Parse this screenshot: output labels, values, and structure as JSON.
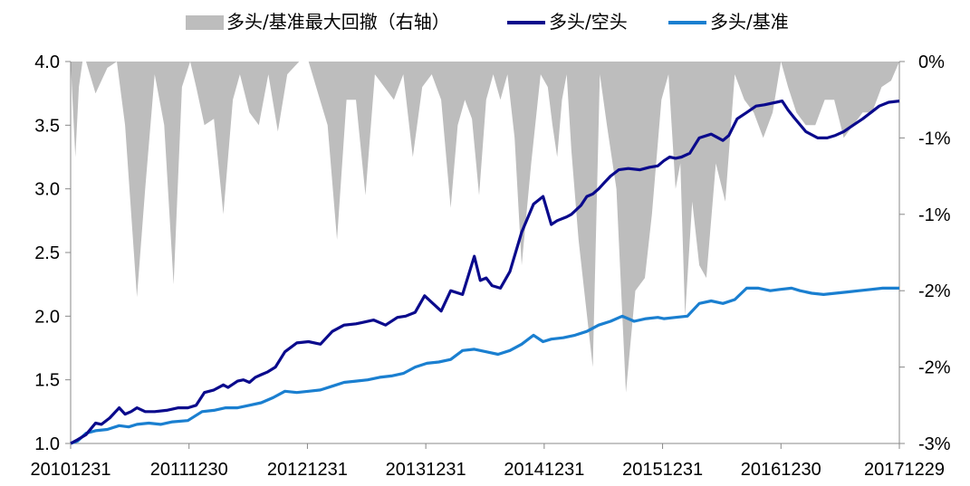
{
  "chart_data": {
    "type": "line",
    "title": "",
    "xlabel": "",
    "ylabel": "",
    "ylim": [
      1.0,
      4.0
    ],
    "y2lim": [
      -3,
      0
    ],
    "left_ticks": [
      "1.0",
      "1.5",
      "2.0",
      "2.5",
      "3.0",
      "3.5",
      "4.0"
    ],
    "right_ticks": [
      "0%",
      "-1%",
      "-1%",
      "-2%",
      "-2%",
      "-3%"
    ],
    "x_ticks": [
      "20101231",
      "20111230",
      "20121231",
      "20131231",
      "20141231",
      "20151231",
      "20161230",
      "20171229"
    ],
    "x_range": [
      2010.99,
      2017.99
    ],
    "grid": false,
    "legend_position": "top",
    "series": [
      {
        "name": "多头/空头",
        "color": "#0a0a8c",
        "axis": "left",
        "x": [
          2010.99,
          2011.05,
          2011.12,
          2011.2,
          2011.25,
          2011.32,
          2011.4,
          2011.45,
          2011.5,
          2011.55,
          2011.62,
          2011.7,
          2011.8,
          2011.9,
          2011.98,
          2012.05,
          2012.12,
          2012.2,
          2012.28,
          2012.32,
          2012.4,
          2012.45,
          2012.5,
          2012.55,
          2012.6,
          2012.65,
          2012.72,
          2012.8,
          2012.9,
          2013.0,
          2013.1,
          2013.2,
          2013.3,
          2013.4,
          2013.45,
          2013.55,
          2013.65,
          2013.75,
          2013.82,
          2013.9,
          2013.98,
          2014.05,
          2014.12,
          2014.2,
          2014.3,
          2014.4,
          2014.45,
          2014.5,
          2014.55,
          2014.62,
          2014.7,
          2014.8,
          2014.9,
          2014.98,
          2015.05,
          2015.1,
          2015.18,
          2015.22,
          2015.3,
          2015.35,
          2015.4,
          2015.45,
          2015.5,
          2015.55,
          2015.62,
          2015.7,
          2015.8,
          2015.88,
          2015.95,
          2016.0,
          2016.05,
          2016.1,
          2016.15,
          2016.22,
          2016.3,
          2016.4,
          2016.5,
          2016.55,
          2016.62,
          2016.7,
          2016.78,
          2016.85,
          2016.95,
          2017.0,
          2017.05,
          2017.1,
          2017.2,
          2017.3,
          2017.38,
          2017.45,
          2017.52,
          2017.6,
          2017.68,
          2017.75,
          2017.82,
          2017.9,
          2017.99
        ],
        "values": [
          1.0,
          1.03,
          1.07,
          1.16,
          1.15,
          1.2,
          1.28,
          1.23,
          1.25,
          1.28,
          1.25,
          1.25,
          1.26,
          1.28,
          1.28,
          1.3,
          1.4,
          1.42,
          1.46,
          1.44,
          1.49,
          1.5,
          1.48,
          1.52,
          1.54,
          1.56,
          1.6,
          1.72,
          1.79,
          1.8,
          1.78,
          1.88,
          1.93,
          1.94,
          1.95,
          1.97,
          1.93,
          1.99,
          2.0,
          2.03,
          2.16,
          2.1,
          2.04,
          2.2,
          2.17,
          2.47,
          2.28,
          2.3,
          2.24,
          2.22,
          2.35,
          2.66,
          2.88,
          2.94,
          2.72,
          2.75,
          2.78,
          2.8,
          2.87,
          2.94,
          2.96,
          3.0,
          3.05,
          3.1,
          3.15,
          3.16,
          3.15,
          3.17,
          3.18,
          3.22,
          3.25,
          3.24,
          3.25,
          3.28,
          3.4,
          3.43,
          3.38,
          3.42,
          3.55,
          3.6,
          3.65,
          3.66,
          3.68,
          3.69,
          3.62,
          3.56,
          3.45,
          3.4,
          3.4,
          3.42,
          3.45,
          3.5,
          3.55,
          3.6,
          3.65,
          3.68,
          3.69
        ]
      },
      {
        "name": "多头/基准",
        "color": "#1a7fd0",
        "axis": "left",
        "x": [
          2010.99,
          2011.05,
          2011.12,
          2011.2,
          2011.3,
          2011.4,
          2011.48,
          2011.55,
          2011.65,
          2011.75,
          2011.85,
          2011.98,
          2012.1,
          2012.2,
          2012.3,
          2012.4,
          2012.5,
          2012.6,
          2012.7,
          2012.8,
          2012.9,
          2013.0,
          2013.1,
          2013.2,
          2013.3,
          2013.4,
          2013.5,
          2013.6,
          2013.7,
          2013.8,
          2013.9,
          2014.0,
          2014.1,
          2014.2,
          2014.3,
          2014.4,
          2014.5,
          2014.6,
          2014.7,
          2014.8,
          2014.9,
          2014.98,
          2015.05,
          2015.15,
          2015.25,
          2015.35,
          2015.45,
          2015.55,
          2015.65,
          2015.75,
          2015.85,
          2015.95,
          2016.0,
          2016.1,
          2016.2,
          2016.3,
          2016.4,
          2016.5,
          2016.6,
          2016.7,
          2016.8,
          2016.9,
          2016.98,
          2017.08,
          2017.15,
          2017.25,
          2017.35,
          2017.45,
          2017.55,
          2017.65,
          2017.75,
          2017.85,
          2017.92,
          2017.99
        ],
        "values": [
          1.0,
          1.02,
          1.08,
          1.1,
          1.11,
          1.14,
          1.13,
          1.15,
          1.16,
          1.15,
          1.17,
          1.18,
          1.25,
          1.26,
          1.28,
          1.28,
          1.3,
          1.32,
          1.36,
          1.41,
          1.4,
          1.41,
          1.42,
          1.45,
          1.48,
          1.49,
          1.5,
          1.52,
          1.53,
          1.55,
          1.6,
          1.63,
          1.64,
          1.66,
          1.73,
          1.74,
          1.72,
          1.7,
          1.73,
          1.78,
          1.85,
          1.8,
          1.82,
          1.83,
          1.85,
          1.88,
          1.93,
          1.96,
          2.0,
          1.96,
          1.98,
          1.99,
          1.98,
          1.99,
          2.0,
          2.1,
          2.12,
          2.1,
          2.13,
          2.22,
          2.22,
          2.2,
          2.21,
          2.22,
          2.2,
          2.18,
          2.17,
          2.18,
          2.19,
          2.2,
          2.21,
          2.22,
          2.22,
          2.22
        ]
      },
      {
        "name": "多头/基准最大回撤（右轴）",
        "color": "#bdbdbd",
        "axis": "right",
        "x": [
          2010.99,
          2011.03,
          2011.06,
          2011.09,
          2011.12,
          2011.2,
          2011.3,
          2011.38,
          2011.45,
          2011.55,
          2011.62,
          2011.7,
          2011.78,
          2011.86,
          2011.93,
          2012.0,
          2012.05,
          2012.12,
          2012.2,
          2012.28,
          2012.36,
          2012.42,
          2012.5,
          2012.58,
          2012.66,
          2012.74,
          2012.82,
          2012.92,
          2013.0,
          2013.08,
          2013.16,
          2013.24,
          2013.32,
          2013.4,
          2013.48,
          2013.56,
          2013.64,
          2013.72,
          2013.8,
          2013.88,
          2013.96,
          2014.04,
          2014.12,
          2014.2,
          2014.26,
          2014.32,
          2014.38,
          2014.44,
          2014.5,
          2014.56,
          2014.62,
          2014.68,
          2014.74,
          2014.8,
          2014.88,
          2014.96,
          2015.02,
          2015.06,
          2015.1,
          2015.14,
          2015.18,
          2015.22,
          2015.28,
          2015.34,
          2015.4,
          2015.46,
          2015.52,
          2015.6,
          2015.68,
          2015.76,
          2015.84,
          2015.9,
          2015.98,
          2016.04,
          2016.1,
          2016.14,
          2016.18,
          2016.24,
          2016.3,
          2016.36,
          2016.44,
          2016.52,
          2016.6,
          2016.68,
          2016.76,
          2016.84,
          2016.92,
          2016.99,
          2017.05,
          2017.12,
          2017.2,
          2017.28,
          2017.36,
          2017.44,
          2017.52,
          2017.6,
          2017.68,
          2017.76,
          2017.84,
          2017.92,
          2017.99
        ],
        "values": [
          0,
          -0.75,
          -0.2,
          0,
          0,
          -0.25,
          -0.05,
          0,
          -0.5,
          -1.85,
          -1.0,
          -0.1,
          -0.5,
          -1.75,
          -0.2,
          0,
          -0.2,
          -0.5,
          -0.45,
          -1.2,
          -0.3,
          -0.1,
          -0.4,
          -0.5,
          -0.1,
          -0.55,
          -0.1,
          0,
          0,
          -0.25,
          -0.5,
          -1.4,
          -0.3,
          -0.3,
          -1.05,
          -0.1,
          -0.2,
          -0.3,
          -0.1,
          -0.75,
          -0.2,
          -0.1,
          -0.3,
          -1.15,
          -0.5,
          -0.3,
          -0.45,
          -1.05,
          -0.3,
          -0.1,
          -0.3,
          -0.1,
          -0.6,
          -1.6,
          -0.8,
          -0.1,
          -0.2,
          -0.5,
          -0.75,
          -0.3,
          -0.1,
          -0.7,
          -1.4,
          -1.9,
          -2.4,
          -0.1,
          -0.5,
          -1.0,
          -2.6,
          -1.8,
          -1.7,
          -1.2,
          -0.3,
          -0.1,
          -1.0,
          -0.8,
          -2.0,
          -1.1,
          -1.6,
          -1.7,
          -0.8,
          -1.1,
          -0.1,
          -0.3,
          -0.4,
          -0.6,
          -0.4,
          0,
          -0.2,
          -0.4,
          -0.5,
          -0.5,
          -0.3,
          -0.3,
          -0.6,
          -0.5,
          -0.4,
          -0.4,
          -0.2,
          -0.15,
          0
        ]
      }
    ]
  }
}
